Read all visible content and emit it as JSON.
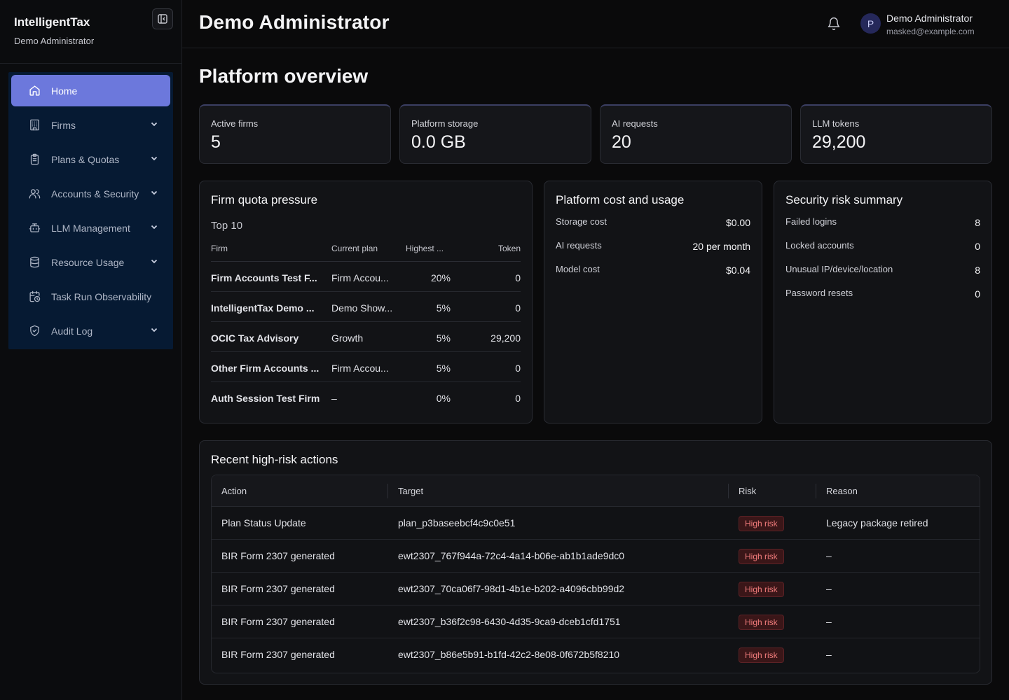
{
  "brand": {
    "name": "IntelligentTax",
    "subtitle": "Demo Administrator"
  },
  "sidebar": {
    "items": [
      {
        "label": "Home",
        "icon": "home-icon",
        "active": true,
        "expandable": false
      },
      {
        "label": "Firms",
        "icon": "building-icon",
        "active": false,
        "expandable": true
      },
      {
        "label": "Plans & Quotas",
        "icon": "clipboard-icon",
        "active": false,
        "expandable": true
      },
      {
        "label": "Accounts & Security",
        "icon": "users-icon",
        "active": false,
        "expandable": true
      },
      {
        "label": "LLM Management",
        "icon": "bot-icon",
        "active": false,
        "expandable": true
      },
      {
        "label": "Resource Usage",
        "icon": "database-icon",
        "active": false,
        "expandable": true
      },
      {
        "label": "Task Run Observability",
        "icon": "calendar-clock-icon",
        "active": false,
        "expandable": false
      },
      {
        "label": "Audit Log",
        "icon": "shield-check-icon",
        "active": false,
        "expandable": true
      }
    ]
  },
  "header": {
    "title": "Demo Administrator",
    "user": {
      "initial": "P",
      "name": "Demo Administrator",
      "email": "masked@example.com"
    }
  },
  "main": {
    "title": "Platform overview",
    "stats": [
      {
        "label": "Active firms",
        "value": "5"
      },
      {
        "label": "Platform storage",
        "value": "0.0 GB"
      },
      {
        "label": "AI requests",
        "value": "20"
      },
      {
        "label": "LLM tokens",
        "value": "29,200"
      }
    ],
    "quota": {
      "title": "Firm quota pressure",
      "subtitle": "Top 10",
      "columns": [
        "Firm",
        "Current plan",
        "Highest ...",
        "Token"
      ],
      "rows": [
        [
          "Firm Accounts Test F...",
          "Firm Accou...",
          "20%",
          "0"
        ],
        [
          "IntelligentTax Demo ...",
          "Demo Show...",
          "5%",
          "0"
        ],
        [
          "OCIC Tax Advisory",
          "Growth",
          "5%",
          "29,200"
        ],
        [
          "Other Firm Accounts ...",
          "Firm Accou...",
          "5%",
          "0"
        ],
        [
          "Auth Session Test Firm",
          "–",
          "0%",
          "0"
        ]
      ]
    },
    "cost": {
      "title": "Platform cost and usage",
      "rows": [
        {
          "label": "Storage cost",
          "value": "$0.00"
        },
        {
          "label": "AI requests",
          "value": "20 per month"
        },
        {
          "label": "Model cost",
          "value": "$0.04"
        }
      ]
    },
    "security": {
      "title": "Security risk summary",
      "rows": [
        {
          "label": "Failed logins",
          "value": "8"
        },
        {
          "label": "Locked accounts",
          "value": "0"
        },
        {
          "label": "Unusual IP/device/location",
          "value": "8"
        },
        {
          "label": "Password resets",
          "value": "0"
        }
      ]
    },
    "recent": {
      "title": "Recent high-risk actions",
      "columns": [
        "Action",
        "Target",
        "Risk",
        "Reason"
      ],
      "rows": [
        [
          "Plan Status Update",
          "plan_p3baseebcf4c9c0e51",
          "High risk",
          "Legacy package retired"
        ],
        [
          "BIR Form 2307 generated",
          "ewt2307_767f944a-72c4-4a14-b06e-ab1b1ade9dc0",
          "High risk",
          "–"
        ],
        [
          "BIR Form 2307 generated",
          "ewt2307_70ca06f7-98d1-4b1e-b202-a4096cbb99d2",
          "High risk",
          "–"
        ],
        [
          "BIR Form 2307 generated",
          "ewt2307_b36f2c98-6430-4d35-9ca9-dceb1cfd1751",
          "High risk",
          "–"
        ],
        [
          "BIR Form 2307 generated",
          "ewt2307_b86e5b91-b1fd-42c2-8e08-0f672b5f8210",
          "High risk",
          "–"
        ]
      ]
    }
  },
  "colors": {
    "accent": "#6c78dc",
    "nav_bg": "#061a33",
    "risk_text": "#f07b7b",
    "risk_bg": "#3a1618"
  }
}
